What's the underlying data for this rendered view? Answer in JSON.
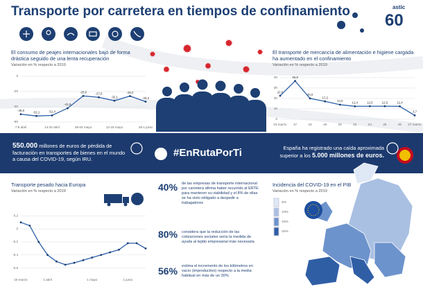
{
  "header": {
    "title": "Transporte por carretera en tiempos de confinamiento",
    "logo": "astic",
    "logo_number": "60"
  },
  "chart_data": [
    {
      "type": "line",
      "title": "El consumo de peajes internacionales bajó de forma drástica seguido de una lenta recuperación",
      "subtitle": "Variación en % respecto a 2019",
      "categories": [
        "7-8 abril",
        null,
        "14-20 abril",
        null,
        "28-04 mayo",
        null,
        "12-18 mayo",
        null,
        "26-1 junio"
      ],
      "values": [
        -49.8,
        -52.1,
        -51.4,
        -41.9,
        -25.8,
        -27.6,
        -32.1,
        -26.0,
        -33.3
      ],
      "value_labels": [
        "-49,8",
        "-52,1",
        "-51,4",
        "-41,9",
        "-25,8",
        "-27,6",
        "-32,1",
        "-26,0",
        "-33,3"
      ],
      "ylim": [
        -60,
        0
      ],
      "yticks": [
        0,
        -20,
        -40,
        -60
      ],
      "color": "#2a5ea8",
      "grid": true
    },
    {
      "type": "line",
      "title": "El transporte de mercancía de alimentación e higiene cargada ha aumentado en el confinamiento",
      "subtitle": "Variación en % respecto a 2019",
      "categories": [
        "16 marzo",
        "17",
        "18",
        "19",
        "20",
        "23",
        "24",
        "25",
        "26",
        "27 marzo"
      ],
      "values": [
        22.6,
        36.8,
        20.0,
        17.2,
        14.0,
        12.4,
        12.5,
        12.5,
        12.4,
        3.7
      ],
      "value_labels": [
        "22,6",
        "36,8",
        "20,0",
        "17,2",
        "14,0",
        "12,4",
        "12,5",
        "12,5",
        "12,4",
        "3,7"
      ],
      "ylim": [
        0,
        40
      ],
      "yticks": [
        0,
        10,
        20,
        30,
        40
      ],
      "color": "#2a5ea8",
      "grid": true
    },
    {
      "type": "line",
      "title": "Transporte pesado hacia Europa",
      "subtitle": "Variación en % respecto a 2019",
      "categories": [
        "16 marzo",
        null,
        null,
        "1 abril",
        null,
        null,
        null,
        null,
        "1 mayo",
        null,
        null,
        null,
        "1 junio",
        null,
        null
      ],
      "values": [
        0.1,
        0.05,
        -0.2,
        -0.4,
        -0.5,
        -0.55,
        -0.52,
        -0.48,
        -0.44,
        -0.4,
        -0.36,
        -0.32,
        -0.22,
        -0.22,
        -0.3
      ],
      "ylim": [
        -0.7,
        0.3
      ],
      "yticks": [
        {
          "value": 0.2,
          "label": "0,2"
        },
        0,
        {
          "value": -0.2,
          "label": "-0,2"
        },
        {
          "value": -0.4,
          "label": "-0,4"
        },
        {
          "value": -0.6,
          "label": "-0,6"
        }
      ],
      "color": "#2a5ea8",
      "grid": true
    }
  ],
  "banner": {
    "left_strong": "550.000",
    "left_text": " millones de euros de pérdida de facturación en transportes de bienes en el mundo a causa del COVID-19, según IRU.",
    "hashtag": "#EnRutaPorTi",
    "right_text": "España ha registrado una caída aproximada superior a los ",
    "right_strong": "5.000 millones de euros."
  },
  "stats": [
    {
      "value": "40%",
      "text": "de las empresas de transporte internacional por carretera afirma haber recurrido al ERTE para mantener su viabilidad y el 8% de ellas se ha visto obligado a despedir a trabajadores"
    },
    {
      "value": "80%",
      "text": "considera que la reducción de las cotizaciones sociales sería la medida de ayuda al tejido empresarial más necesaria"
    },
    {
      "value": "56%",
      "text": "estima el incremento de los kilómetros en vacío (improductivo) respecto a la media habitual en más de un 30%"
    }
  ],
  "map": {
    "title": "Incidencia del COVID-19 en el PIB",
    "subtitle": "Variación en % respecto a 2019",
    "legend": [
      "-5%",
      "-10%",
      "-15%",
      "-20%"
    ],
    "legend_colors": [
      "#dfe8f5",
      "#a9c0e2",
      "#6d93cc",
      "#2f5ea5"
    ]
  }
}
